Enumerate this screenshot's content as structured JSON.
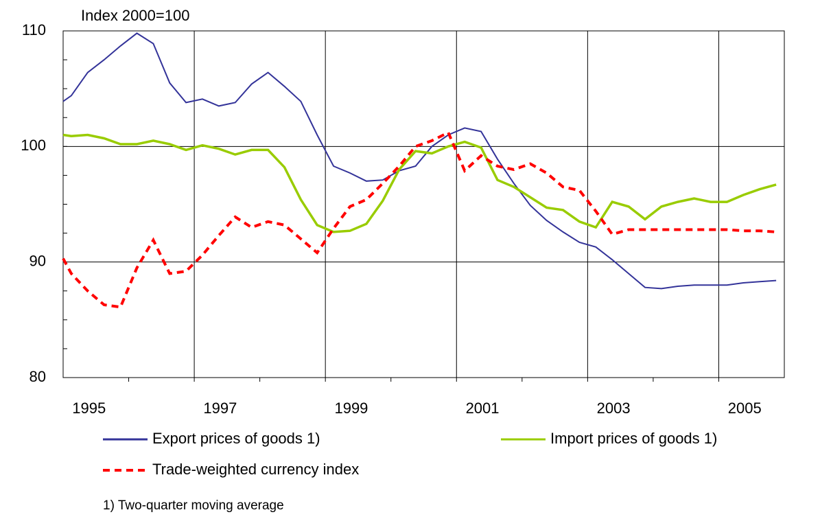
{
  "chart_data": {
    "type": "line",
    "title": "Index 2000=100",
    "footnote": "1) Two-quarter moving average",
    "x": [
      1995,
      1995.125,
      1995.375,
      1995.625,
      1995.875,
      1996.125,
      1996.375,
      1996.625,
      1996.875,
      1997.125,
      1997.375,
      1997.625,
      1997.875,
      1998.125,
      1998.375,
      1998.625,
      1998.875,
      1999.125,
      1999.375,
      1999.625,
      1999.875,
      2000.125,
      2000.375,
      2000.625,
      2000.875,
      2001.125,
      2001.375,
      2001.625,
      2001.875,
      2002.125,
      2002.375,
      2002.625,
      2002.875,
      2003.125,
      2003.375,
      2003.625,
      2003.875,
      2004.125,
      2004.375,
      2004.625,
      2004.875,
      2005.125,
      2005.375,
      2005.625,
      2005.875
    ],
    "series": [
      {
        "name": "Export prices of goods 1)",
        "color": "#333399",
        "dash": false,
        "values": [
          103.9,
          104.4,
          106.4,
          107.5,
          108.7,
          109.8,
          108.9,
          105.5,
          103.8,
          104.1,
          103.5,
          103.8,
          105.4,
          106.4,
          105.2,
          103.9,
          101.0,
          98.3,
          97.7,
          97.0,
          97.1,
          97.9,
          98.3,
          100.0,
          101.0,
          101.6,
          101.3,
          98.9,
          96.8,
          94.9,
          93.6,
          92.6,
          91.7,
          91.3,
          90.2,
          89.0,
          87.8,
          87.7,
          87.9,
          88.0,
          88.0,
          88.0,
          88.2,
          88.3,
          88.4
        ]
      },
      {
        "name": "Import prices of goods 1)",
        "color": "#99cc00",
        "dash": false,
        "values": [
          101.0,
          100.9,
          101.0,
          100.7,
          100.2,
          100.2,
          100.5,
          100.2,
          99.7,
          100.1,
          99.8,
          99.3,
          99.7,
          99.7,
          98.2,
          95.4,
          93.2,
          92.6,
          92.7,
          93.3,
          95.3,
          98.0,
          99.6,
          99.4,
          100.0,
          100.4,
          99.9,
          97.1,
          96.5,
          95.6,
          94.7,
          94.5,
          93.5,
          93.0,
          95.2,
          94.8,
          93.7,
          94.8,
          95.2,
          95.5,
          95.2,
          95.2,
          95.8,
          96.3,
          96.7
        ]
      },
      {
        "name": "Trade-weighted currency index",
        "color": "#ff0000",
        "dash": true,
        "values": [
          90.3,
          89.0,
          87.5,
          86.3,
          86.1,
          89.5,
          91.9,
          89.0,
          89.2,
          90.6,
          92.3,
          93.9,
          93.0,
          93.5,
          93.2,
          92.0,
          90.8,
          92.9,
          94.8,
          95.4,
          96.8,
          98.3,
          100.0,
          100.5,
          101.2,
          97.9,
          99.2,
          98.3,
          98.0,
          98.5,
          97.7,
          96.5,
          96.2,
          94.4,
          92.4,
          92.8,
          92.8,
          92.8,
          92.8,
          92.8,
          92.8,
          92.8,
          92.7,
          92.7,
          92.6
        ]
      }
    ],
    "xlim": [
      1995,
      2006
    ],
    "xticks": [
      1995,
      1997,
      1999,
      2001,
      2003,
      2005
    ],
    "ylim": [
      80,
      110
    ],
    "yticks": [
      80,
      90,
      100,
      110
    ],
    "grid": true
  }
}
